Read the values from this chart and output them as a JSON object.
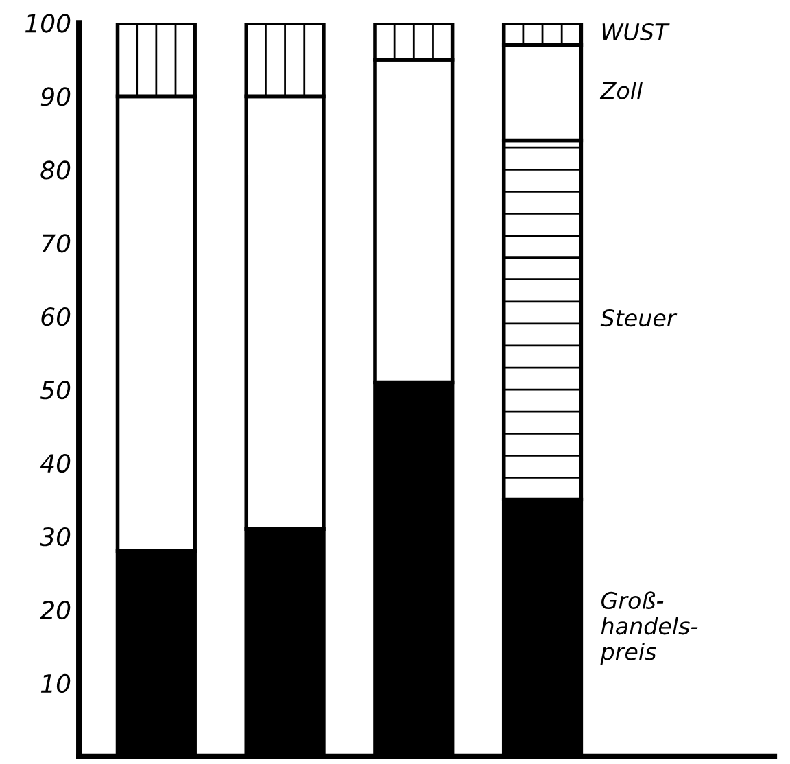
{
  "chart_data": {
    "type": "bar",
    "stacked": true,
    "categories": [
      null,
      null,
      null,
      null
    ],
    "series": [
      {
        "name": "Groß-\nhandels-\npreis",
        "color": "#000000",
        "values": [
          28,
          31,
          51,
          35
        ]
      },
      {
        "name": "Steuer",
        "color": "#ffffff",
        "values": [
          0,
          0,
          0,
          49
        ]
      },
      {
        "name": "Zoll",
        "color": "#ffffff",
        "values": [
          62,
          59,
          44,
          13
        ]
      },
      {
        "name": "WUST",
        "color": "#ffffff",
        "values": [
          10,
          10,
          5,
          3
        ]
      }
    ],
    "ylim": [
      0,
      100
    ],
    "yticks": [
      10,
      20,
      30,
      40,
      50,
      60,
      70,
      80,
      90,
      100
    ],
    "grid": false,
    "legend": "right"
  }
}
